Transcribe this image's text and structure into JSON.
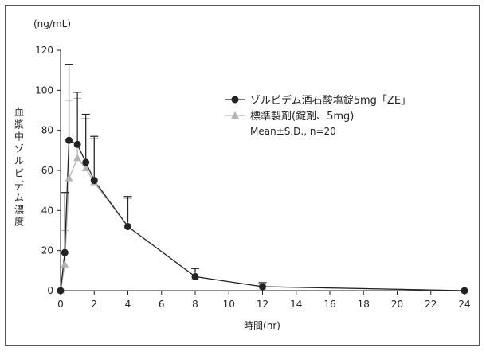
{
  "chart_data": {
    "type": "line",
    "title": "",
    "unit_label": "(ng/mL)",
    "xlabel": "時間(hr)",
    "ylabel": "血漿中ゾルピデム濃度",
    "xlim": [
      0,
      24
    ],
    "ylim": [
      0,
      120
    ],
    "xticks": [
      0,
      2,
      4,
      6,
      8,
      10,
      12,
      14,
      16,
      18,
      20,
      22,
      24
    ],
    "yticks": [
      0,
      20,
      40,
      60,
      80,
      100,
      120
    ],
    "grid": false,
    "legend_position": "upper-right",
    "note": "Mean±S.D., n=20",
    "series": [
      {
        "name": "ゾルピデム酒石酸塩錠5mg「ZE」",
        "color": "#222222",
        "marker": "circle",
        "x": [
          0,
          0.25,
          0.5,
          1,
          1.5,
          2,
          4,
          8,
          12,
          24
        ],
        "y": [
          0,
          19,
          75,
          73,
          64,
          55,
          32,
          7,
          2,
          0
        ],
        "sd": [
          0,
          30,
          38,
          26,
          24,
          22,
          15,
          4,
          2,
          0
        ]
      },
      {
        "name": "標準製剤(錠剤、5mg)",
        "color": "#b4b4b4",
        "marker": "triangle",
        "x": [
          0,
          0.25,
          0.5,
          1,
          1.5,
          2,
          4,
          8,
          12,
          24
        ],
        "y": [
          0,
          13,
          56,
          66,
          61,
          54,
          32,
          7,
          2,
          0
        ],
        "sd": [
          0,
          17,
          39,
          30,
          25,
          22,
          14,
          4,
          2,
          0
        ]
      }
    ]
  }
}
